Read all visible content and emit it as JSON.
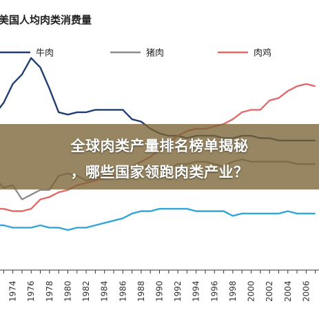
{
  "chart_data": {
    "type": "line",
    "title": "美国人均肉类消费量",
    "categories": [
      "1974",
      "1976",
      "1978",
      "1980",
      "1982",
      "1984",
      "1986",
      "1988",
      "1990",
      "1992",
      "1994",
      "1996",
      "1998",
      "2000",
      "2002",
      "2004",
      "2006"
    ],
    "x": [
      1972,
      1973,
      1974,
      1975,
      1976,
      1977,
      1978,
      1979,
      1980,
      1981,
      1982,
      1983,
      1984,
      1985,
      1986,
      1987,
      1988,
      1989,
      1990,
      1991,
      1992,
      1993,
      1994,
      1995,
      1996,
      1997,
      1998,
      1999,
      2000,
      2001,
      2002,
      2003,
      2004,
      2005,
      2006,
      2007
    ],
    "series": [
      {
        "name": "牛肉",
        "color": "#1f3d73",
        "values": [
          0.66,
          0.71,
          0.79,
          0.83,
          0.9,
          0.86,
          0.77,
          0.67,
          0.66,
          0.67,
          0.67,
          0.68,
          0.68,
          0.68,
          0.68,
          0.64,
          0.63,
          0.6,
          0.58,
          0.57,
          0.57,
          0.56,
          0.57,
          0.57,
          0.57,
          0.56,
          0.56,
          0.57,
          0.57,
          0.56,
          0.56,
          0.55,
          0.55,
          0.55,
          0.55,
          0.55
        ]
      },
      {
        "name": "猪肉",
        "color": "#8c8c8c",
        "values": [
          0.39,
          0.35,
          0.36,
          0.3,
          0.32,
          0.34,
          0.34,
          0.4,
          0.41,
          0.4,
          0.38,
          0.39,
          0.4,
          0.4,
          0.4,
          0.42,
          0.44,
          0.44,
          0.43,
          0.43,
          0.45,
          0.45,
          0.46,
          0.46,
          0.45,
          0.44,
          0.46,
          0.47,
          0.46,
          0.46,
          0.46,
          0.46,
          0.46,
          0.45,
          0.45,
          0.45
        ]
      },
      {
        "name": "肉鸡",
        "color": "#e06a6a",
        "values": [
          0.26,
          0.26,
          0.25,
          0.25,
          0.26,
          0.3,
          0.31,
          0.33,
          0.34,
          0.36,
          0.37,
          0.38,
          0.39,
          0.4,
          0.41,
          0.44,
          0.46,
          0.48,
          0.51,
          0.54,
          0.57,
          0.59,
          0.6,
          0.6,
          0.61,
          0.62,
          0.64,
          0.67,
          0.68,
          0.68,
          0.72,
          0.73,
          0.76,
          0.78,
          0.79,
          0.78
        ]
      },
      {
        "name": "",
        "color": "#2fa6d6",
        "values": [
          0.19,
          0.19,
          0.18,
          0.18,
          0.18,
          0.19,
          0.18,
          0.18,
          0.17,
          0.18,
          0.18,
          0.19,
          0.2,
          0.21,
          0.22,
          0.24,
          0.25,
          0.25,
          0.26,
          0.26,
          0.26,
          0.26,
          0.25,
          0.25,
          0.25,
          0.25,
          0.23,
          0.24,
          0.24,
          0.24,
          0.24,
          0.24,
          0.25,
          0.24,
          0.24,
          0.24
        ]
      }
    ],
    "xlim": [
      1972.6,
      2007.4
    ],
    "ylim": [
      0,
      1
    ],
    "grid": false,
    "legend_position": "top"
  },
  "overlay": {
    "line1": "全球肉类产量排名榜单揭秘",
    "line2": "，哪些国家领跑肉类产业？"
  }
}
